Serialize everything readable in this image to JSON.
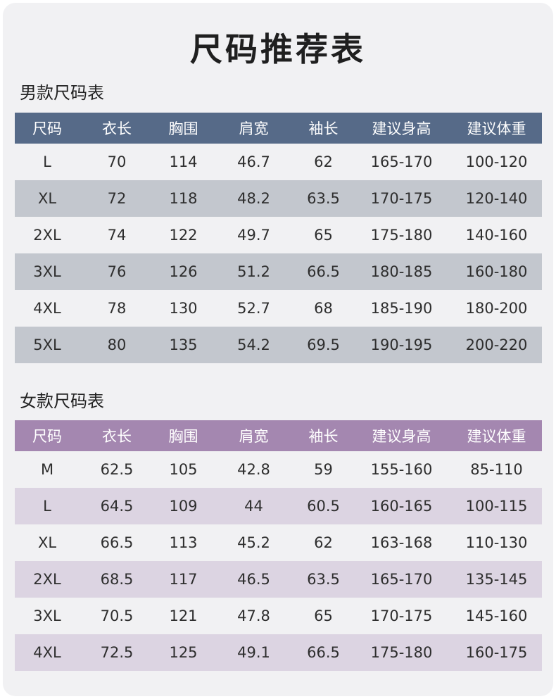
{
  "title": "尺码推荐表",
  "columns": [
    "尺码",
    "衣长",
    "胸围",
    "肩宽",
    "袖长",
    "建议身高",
    "建议体重"
  ],
  "men": {
    "heading": "男款尺码表",
    "rows": [
      [
        "L",
        "70",
        "114",
        "46.7",
        "62",
        "165-170",
        "100-120"
      ],
      [
        "XL",
        "72",
        "118",
        "48.2",
        "63.5",
        "170-175",
        "120-140"
      ],
      [
        "2XL",
        "74",
        "122",
        "49.7",
        "65",
        "175-180",
        "140-160"
      ],
      [
        "3XL",
        "76",
        "126",
        "51.2",
        "66.5",
        "180-185",
        "160-180"
      ],
      [
        "4XL",
        "78",
        "130",
        "52.7",
        "68",
        "185-190",
        "180-200"
      ],
      [
        "5XL",
        "80",
        "135",
        "54.2",
        "69.5",
        "190-195",
        "200-220"
      ]
    ],
    "header_color": "#566a88",
    "stripe_color": "#c3c7ce"
  },
  "women": {
    "heading": "女款尺码表",
    "rows": [
      [
        "M",
        "62.5",
        "105",
        "42.8",
        "59",
        "155-160",
        "85-110"
      ],
      [
        "L",
        "64.5",
        "109",
        "44",
        "60.5",
        "160-165",
        "100-115"
      ],
      [
        "XL",
        "66.5",
        "113",
        "45.2",
        "62",
        "163-168",
        "110-130"
      ],
      [
        "2XL",
        "68.5",
        "117",
        "46.5",
        "63.5",
        "165-170",
        "135-145"
      ],
      [
        "3XL",
        "70.5",
        "121",
        "47.8",
        "65",
        "170-175",
        "145-160"
      ],
      [
        "4XL",
        "72.5",
        "125",
        "49.1",
        "66.5",
        "175-180",
        "160-175"
      ]
    ],
    "header_color": "#a487b0",
    "stripe_color": "#dcd4e2"
  }
}
